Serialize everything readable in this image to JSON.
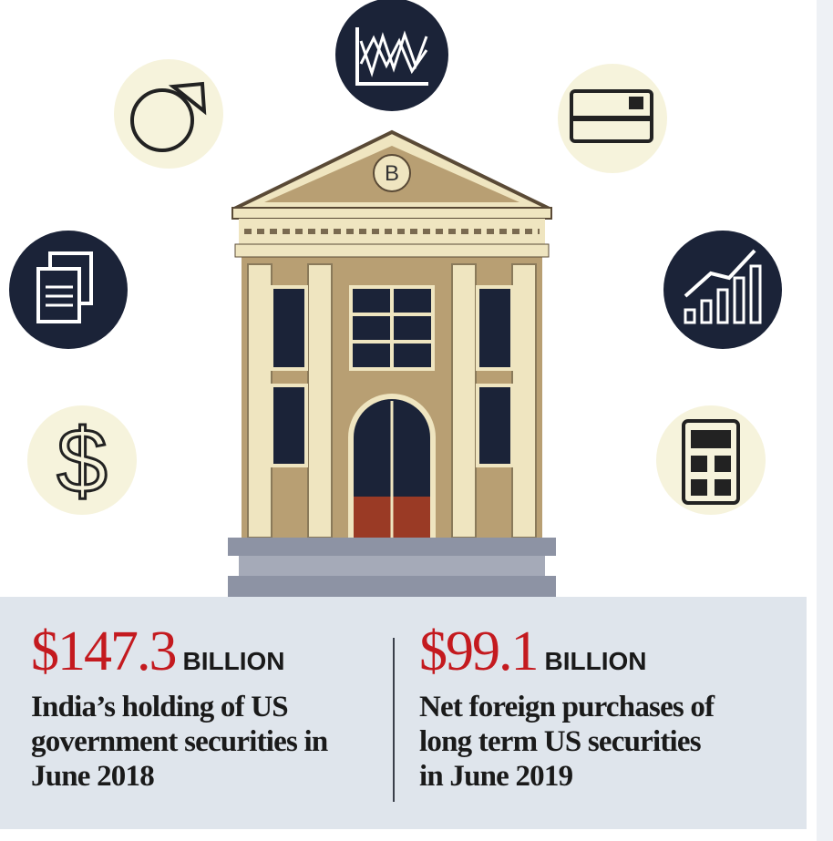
{
  "illustration": {
    "pediment_letter": "B"
  },
  "stats": [
    {
      "amount": "$147.3",
      "unit": "BILLION",
      "description_lines": [
        "India’s holding of US",
        "government securities in",
        "June 2018"
      ]
    },
    {
      "amount": "$99.1",
      "unit": "BILLION",
      "description_lines": [
        "Net foreign purchases of",
        "long term US securities",
        "in June 2019"
      ]
    }
  ]
}
